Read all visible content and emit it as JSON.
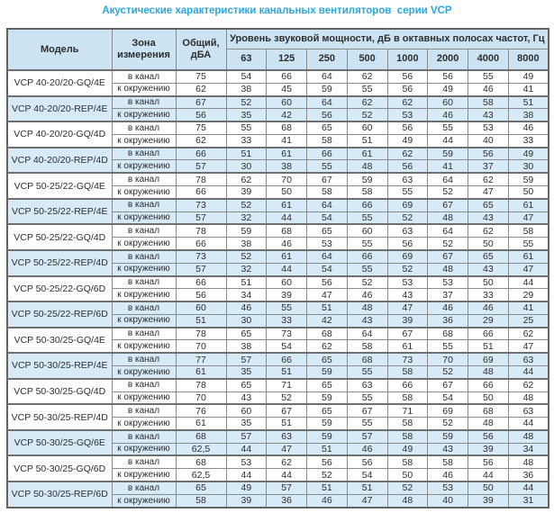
{
  "title": "Акустические характеристики канальных вентиляторов  серии VCP",
  "table": {
    "col_model": "Модель",
    "col_zone": "Зона\nизмерения",
    "col_total": "Общий,\nдБА",
    "col_spectrum": "Уровень звуковой мощности, дБ в октавных полосах частот, Гц",
    "freq_labels": [
      "63",
      "125",
      "250",
      "500",
      "1000",
      "2000",
      "4000",
      "8000"
    ],
    "groups": [
      {
        "model": "VCP 40-20/20-GQ/4E",
        "shade": "white",
        "rows": [
          {
            "zone": "в канал",
            "total": "75",
            "values": [
              54,
              66,
              64,
              62,
              56,
              56,
              55,
              49
            ]
          },
          {
            "zone": "к окружению",
            "total": "62",
            "values": [
              38,
              45,
              59,
              55,
              56,
              49,
              46,
              41
            ]
          }
        ]
      },
      {
        "model": "VCP 40-20/20-REP/4E",
        "shade": "blue",
        "rows": [
          {
            "zone": "в канал",
            "total": "67",
            "values": [
              52,
              60,
              64,
              62,
              62,
              60,
              58,
              51
            ]
          },
          {
            "zone": "к окружению",
            "total": "56",
            "values": [
              35,
              42,
              56,
              52,
              53,
              46,
              43,
              38
            ]
          }
        ]
      },
      {
        "model": "VCP 40-20/20-GQ/4D",
        "shade": "white",
        "rows": [
          {
            "zone": "в канал",
            "total": "75",
            "values": [
              55,
              68,
              65,
              60,
              56,
              55,
              53,
              46
            ]
          },
          {
            "zone": "к окружению",
            "total": "62",
            "values": [
              33,
              41,
              58,
              51,
              49,
              44,
              40,
              33
            ]
          }
        ]
      },
      {
        "model": "VCP 40-20/20-REP/4D",
        "shade": "blue",
        "rows": [
          {
            "zone": "в канал",
            "total": "66",
            "values": [
              51,
              61,
              66,
              61,
              62,
              59,
              56,
              49
            ]
          },
          {
            "zone": "к окружению",
            "total": "57",
            "values": [
              30,
              38,
              55,
              48,
              56,
              41,
              37,
              30
            ]
          }
        ]
      },
      {
        "model": "VCP 50-25/22-GQ/4E",
        "shade": "white",
        "rows": [
          {
            "zone": "в канал",
            "total": "78",
            "values": [
              62,
              70,
              67,
              59,
              63,
              64,
              62,
              59
            ]
          },
          {
            "zone": "к окружению",
            "total": "66",
            "values": [
              39,
              50,
              58,
              58,
              55,
              52,
              47,
              50
            ]
          }
        ]
      },
      {
        "model": "VCP 50-25/22-REP/4E",
        "shade": "blue",
        "rows": [
          {
            "zone": "в канал",
            "total": "73",
            "values": [
              52,
              61,
              64,
              66,
              69,
              67,
              65,
              61
            ]
          },
          {
            "zone": "к окружению",
            "total": "57",
            "values": [
              32,
              44,
              54,
              55,
              52,
              48,
              43,
              47
            ]
          }
        ]
      },
      {
        "model": "VCP 50-25/22-GQ/4D",
        "shade": "white",
        "rows": [
          {
            "zone": "в канал",
            "total": "78",
            "values": [
              59,
              68,
              65,
              60,
              63,
              64,
              62,
              58
            ]
          },
          {
            "zone": "к окружению",
            "total": "66",
            "values": [
              38,
              46,
              53,
              55,
              56,
              52,
              50,
              55
            ]
          }
        ]
      },
      {
        "model": "VCP 50-25/22-REP/4D",
        "shade": "blue",
        "rows": [
          {
            "zone": "в канал",
            "total": "73",
            "values": [
              52,
              61,
              64,
              66,
              69,
              67,
              65,
              61
            ]
          },
          {
            "zone": "к окружению",
            "total": "57",
            "values": [
              32,
              44,
              54,
              55,
              52,
              48,
              43,
              47
            ]
          }
        ]
      },
      {
        "model": "VCP 50-25/22-GQ/6D",
        "shade": "white",
        "rows": [
          {
            "zone": "в канал",
            "total": "66",
            "values": [
              51,
              60,
              56,
              52,
              53,
              53,
              50,
              44
            ]
          },
          {
            "zone": "к окружению",
            "total": "56",
            "values": [
              34,
              39,
              47,
              46,
              43,
              37,
              33,
              29
            ]
          }
        ]
      },
      {
        "model": "VCP 50-25/22-REP/6D",
        "shade": "blue",
        "rows": [
          {
            "zone": "в канал",
            "total": "60",
            "values": [
              46,
              55,
              51,
              48,
              47,
              46,
              46,
              41
            ]
          },
          {
            "zone": "к окружению",
            "total": "51",
            "values": [
              30,
              33,
              42,
              43,
              39,
              36,
              29,
              25
            ]
          }
        ]
      },
      {
        "model": "VCP 50-30/25-GQ/4E",
        "shade": "white",
        "rows": [
          {
            "zone": "в канал",
            "total": "78",
            "values": [
              65,
              73,
              68,
              64,
              67,
              68,
              66,
              62
            ]
          },
          {
            "zone": "к окружению",
            "total": "70",
            "values": [
              38,
              54,
              62,
              58,
              61,
              55,
              51,
              47
            ]
          }
        ]
      },
      {
        "model": "VCP 50-30/25-REP/4E",
        "shade": "blue",
        "rows": [
          {
            "zone": "в канал",
            "total": "77",
            "values": [
              57,
              66,
              65,
              68,
              73,
              70,
              69,
              63
            ]
          },
          {
            "zone": "к окружению",
            "total": "61",
            "values": [
              35,
              51,
              59,
              55,
              58,
              52,
              48,
              44
            ]
          }
        ]
      },
      {
        "model": "VCP 50-30/25-GQ/4D",
        "shade": "white",
        "rows": [
          {
            "zone": "в канал",
            "total": "78",
            "values": [
              65,
              71,
              65,
              63,
              66,
              67,
              66,
              62
            ]
          },
          {
            "zone": "к окружению",
            "total": "70",
            "values": [
              43,
              52,
              59,
              55,
              58,
              54,
              50,
              48
            ]
          }
        ]
      },
      {
        "model": "VCP 50-30/25-REP/4D",
        "shade": "white",
        "rows": [
          {
            "zone": "в канал",
            "total": "76",
            "values": [
              60,
              67,
              65,
              67,
              71,
              69,
              68,
              63
            ]
          },
          {
            "zone": "к окружению",
            "total": "61",
            "values": [
              35,
              51,
              59,
              55,
              58,
              52,
              48,
              44
            ]
          }
        ]
      },
      {
        "model": "VCP 50-30/25-GQ/6E",
        "shade": "blue",
        "rows": [
          {
            "zone": "в канал",
            "total": "68",
            "values": [
              57,
              63,
              59,
              57,
              58,
              59,
              56,
              48
            ]
          },
          {
            "zone": "к окружению",
            "total": "62,5",
            "values": [
              44,
              47,
              51,
              46,
              49,
              43,
              39,
              34
            ]
          }
        ]
      },
      {
        "model": "VCP 50-30/25-GQ/6D",
        "shade": "white",
        "rows": [
          {
            "zone": "в канал",
            "total": "68",
            "values": [
              53,
              62,
              56,
              56,
              58,
              58,
              56,
              48
            ]
          },
          {
            "zone": "к окружению",
            "total": "62,5",
            "values": [
              44,
              44,
              52,
              54,
              50,
              46,
              44,
              36
            ]
          }
        ]
      },
      {
        "model": "VCP 50-30/25-REP/6D",
        "shade": "blue",
        "rows": [
          {
            "zone": "в канал",
            "total": "65",
            "values": [
              49,
              57,
              51,
              51,
              52,
              53,
              50,
              44
            ]
          },
          {
            "zone": "к окружению",
            "total": "58",
            "values": [
              39,
              36,
              46,
              47,
              48,
              40,
              39,
              31
            ]
          }
        ]
      }
    ]
  },
  "colors": {
    "accent_title": "#2ba7de",
    "header_bg": "#cbe3f3",
    "band_blue": "#d6eaf8",
    "border": "#8a8a8a"
  }
}
